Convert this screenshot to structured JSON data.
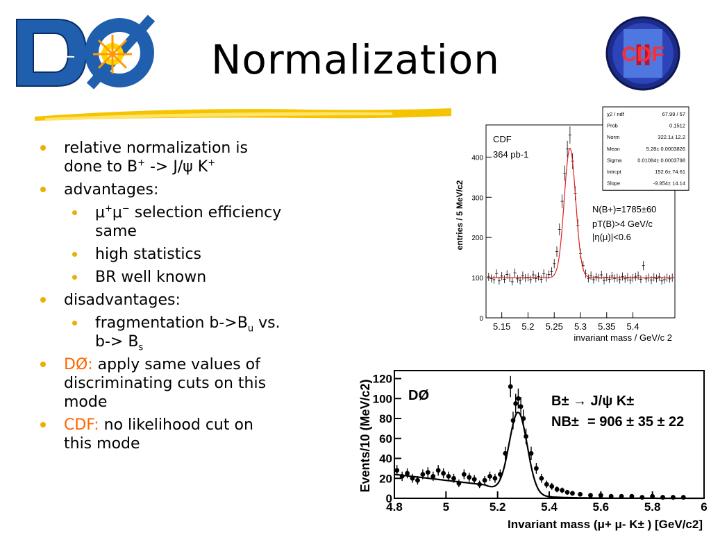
{
  "slide": {
    "title": "Normalization"
  },
  "logos": {
    "left": {
      "text": "DØ"
    },
    "right": {
      "text": "CDF",
      "numeral": "II"
    }
  },
  "bullets": {
    "b1": {
      "line1": "relative normalization is",
      "line2_pre": "done to B",
      "sup_plus": "+",
      "arrow": " -> J/",
      "psi": "ψ",
      "k": " K",
      "sup_k": "+"
    },
    "b2": {
      "text": "advantages:"
    },
    "b2_1": {
      "mu1": "μ",
      "sup1": "+",
      "mu2": "μ",
      "sup2": "−",
      "rest": " selection efficiency",
      "line2": "same"
    },
    "b2_2": {
      "text": "high statistics"
    },
    "b2_3": {
      "text": "BR well known"
    },
    "b3": {
      "text": "disadvantages:"
    },
    "b3_1": {
      "pre": "fragmentation b->B",
      "sub1": "u",
      "post": " vs.",
      "line2": "b-> B",
      "sub2": "s"
    },
    "b4": {
      "label": "DØ:",
      "text": " apply same values of",
      "line2": "discriminating cuts on this",
      "line3": "mode"
    },
    "b5": {
      "label": "CDF:",
      "text": " no likelihood cut on",
      "line2": "this mode"
    }
  },
  "chart_data": [
    {
      "type": "scatter",
      "experiment": "CDF",
      "luminosity": "364 pb-1",
      "ylabel": "entries / 5 MeV/c2",
      "xlabel": "invariant mass / GeV/c 2",
      "xlim": [
        5.12,
        5.48
      ],
      "ylim": [
        0,
        480
      ],
      "xticks": [
        "5.15",
        "5.2",
        "5.25",
        "5.3",
        "5.35",
        "5.4"
      ],
      "yticks": [
        "0",
        "100",
        "200",
        "300",
        "400"
      ],
      "annotations": [
        "N(B+)=1785±60",
        "pT(B)>4 GeV/c",
        "|η(μ)|<0.6"
      ],
      "fit": {
        "norm": 322.1,
        "mean": 5.28,
        "sigma": 0.01084,
        "intercept": 152.6,
        "slope": -9.954
      },
      "stats_box": [
        {
          "label": "χ2 / ndf",
          "value": "67.99 / 57"
        },
        {
          "label": "Prob",
          "value": "0.1512"
        },
        {
          "label": "Norm",
          "value": "322.1±  12.2"
        },
        {
          "label": "Mean",
          "value": "5.28± 0.0003826"
        },
        {
          "label": "Sigma",
          "value": "0.01084± 0.0003798"
        },
        {
          "label": "Intrcpt",
          "value": "152.6± 74.61"
        },
        {
          "label": "Slope",
          "value": "-9.954± 14.14"
        }
      ],
      "x": [
        5.125,
        5.13,
        5.135,
        5.14,
        5.145,
        5.15,
        5.155,
        5.16,
        5.165,
        5.17,
        5.175,
        5.18,
        5.185,
        5.19,
        5.195,
        5.2,
        5.205,
        5.21,
        5.215,
        5.22,
        5.225,
        5.23,
        5.235,
        5.24,
        5.245,
        5.25,
        5.255,
        5.26,
        5.265,
        5.27,
        5.275,
        5.28,
        5.285,
        5.29,
        5.295,
        5.3,
        5.305,
        5.31,
        5.315,
        5.32,
        5.325,
        5.33,
        5.335,
        5.34,
        5.345,
        5.35,
        5.355,
        5.36,
        5.365,
        5.37,
        5.375,
        5.38,
        5.385,
        5.39,
        5.395,
        5.4,
        5.405,
        5.41,
        5.415,
        5.42,
        5.425,
        5.43,
        5.435,
        5.44,
        5.445,
        5.45,
        5.455,
        5.46,
        5.465,
        5.47,
        5.475
      ],
      "y": [
        102,
        98,
        95,
        110,
        92,
        104,
        96,
        108,
        100,
        90,
        112,
        97,
        93,
        105,
        99,
        101,
        95,
        107,
        98,
        103,
        96,
        110,
        100,
        108,
        115,
        135,
        165,
        220,
        290,
        360,
        420,
        455,
        390,
        310,
        230,
        160,
        130,
        110,
        98,
        105,
        95,
        102,
        99,
        107,
        93,
        101,
        96,
        104,
        98,
        100,
        95,
        103,
        97,
        101,
        94,
        99,
        102,
        105,
        96,
        130,
        97,
        100,
        94,
        101,
        98,
        102,
        92,
        95,
        100,
        97,
        100
      ]
    },
    {
      "type": "scatter",
      "experiment": "DØ",
      "decay": "B± → J/ψ K±",
      "yield_label": "NB±",
      "yield": "= 906 ± 35 ± 22",
      "ylabel": "Events/10 (MeV/c2)",
      "xlabel": "Invariant mass (μ+ μ- K± )  [GeV/c2]",
      "xlim": [
        4.8,
        6.0
      ],
      "ylim": [
        0,
        128
      ],
      "xticks": [
        "4.8",
        "5",
        "5.2",
        "5.4",
        "5.6",
        "5.8",
        "6"
      ],
      "yticks": [
        "0",
        "20",
        "40",
        "60",
        "80",
        "100",
        "120"
      ],
      "x": [
        4.81,
        4.83,
        4.85,
        4.87,
        4.89,
        4.91,
        4.93,
        4.95,
        4.97,
        4.99,
        5.01,
        5.03,
        5.05,
        5.07,
        5.09,
        5.11,
        5.13,
        5.15,
        5.17,
        5.19,
        5.21,
        5.23,
        5.25,
        5.26,
        5.27,
        5.28,
        5.29,
        5.3,
        5.31,
        5.33,
        5.35,
        5.37,
        5.39,
        5.41,
        5.43,
        5.45,
        5.47,
        5.49,
        5.52,
        5.56,
        5.6,
        5.64,
        5.68,
        5.72,
        5.76,
        5.8,
        5.84,
        5.88,
        5.92
      ],
      "y": [
        28,
        22,
        25,
        20,
        18,
        24,
        26,
        22,
        28,
        25,
        22,
        20,
        15,
        24,
        21,
        19,
        14,
        18,
        22,
        20,
        24,
        45,
        112,
        78,
        95,
        100,
        92,
        80,
        62,
        45,
        30,
        20,
        14,
        12,
        9,
        8,
        6,
        5,
        4,
        3,
        3,
        2,
        2,
        2,
        1,
        2,
        1,
        1,
        1
      ]
    }
  ]
}
